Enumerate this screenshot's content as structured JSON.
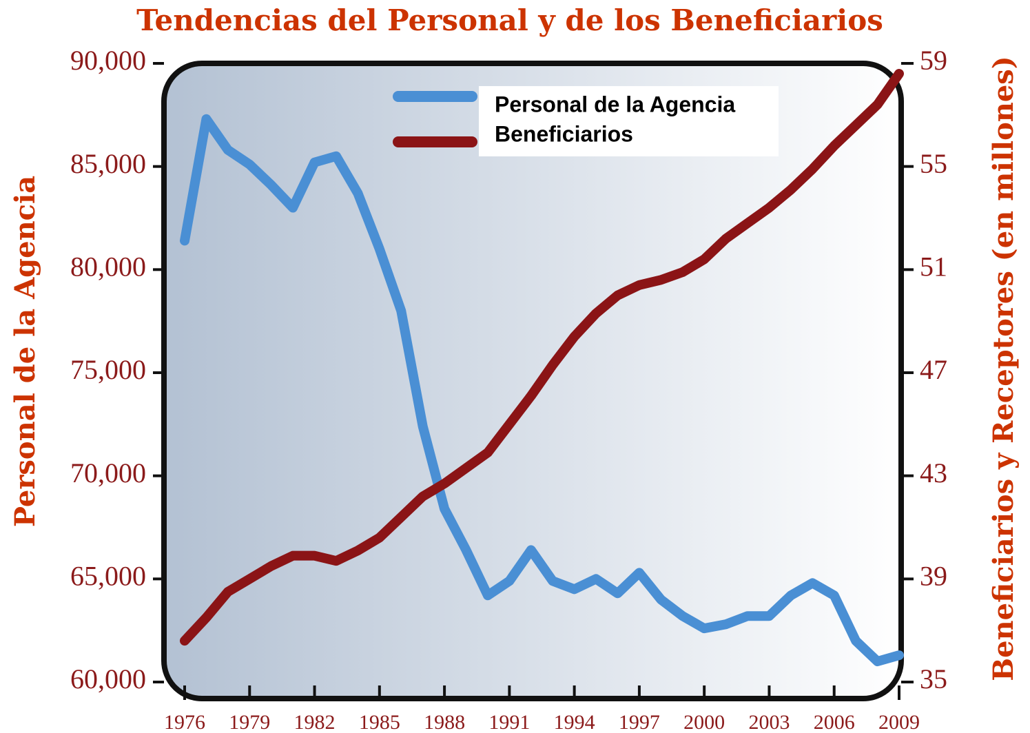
{
  "chart_data": {
    "type": "line",
    "title": "Tendencias del Personal y de los Beneficiarios",
    "ylabel": "Personal de la Agencia",
    "y2label": "Beneficiarios y Receptores (en millones)",
    "x": [
      1976,
      1977,
      1978,
      1979,
      1980,
      1981,
      1982,
      1983,
      1984,
      1985,
      1986,
      1987,
      1988,
      1989,
      1990,
      1991,
      1992,
      1993,
      1994,
      1995,
      1996,
      1997,
      1998,
      1999,
      2000,
      2001,
      2002,
      2003,
      2004,
      2005,
      2006,
      2007,
      2008,
      2009
    ],
    "xlim": [
      1976,
      2009
    ],
    "xticks": [
      1976,
      1979,
      1982,
      1985,
      1988,
      1991,
      1994,
      1997,
      2000,
      2003,
      2006,
      2009
    ],
    "ylim": [
      60000,
      90000
    ],
    "yticks": [
      {
        "value": 60000,
        "label": "60,000"
      },
      {
        "value": 65000,
        "label": "65,000"
      },
      {
        "value": 70000,
        "label": "70,000"
      },
      {
        "value": 75000,
        "label": "75,000"
      },
      {
        "value": 80000,
        "label": "80,000"
      },
      {
        "value": 85000,
        "label": "85,000"
      },
      {
        "value": 90000,
        "label": "90,000"
      }
    ],
    "y2lim": [
      35,
      59
    ],
    "y2ticks": [
      35,
      39,
      43,
      47,
      51,
      55,
      59
    ],
    "legend": "top",
    "series": [
      {
        "name": "Personal de la Agencia",
        "color": "#4a8fd4",
        "values": [
          81400,
          87300,
          85800,
          85100,
          84100,
          83000,
          85200,
          85500,
          83700,
          81000,
          78000,
          72400,
          68400,
          66400,
          64200,
          64900,
          66400,
          64900,
          64500,
          65000,
          64300,
          65300,
          64000,
          63200,
          62600,
          62800,
          63200,
          63200,
          64200,
          64800,
          64200,
          62000,
          61000,
          61300
        ]
      },
      {
        "name": "Beneficiarios",
        "color": "#8b1416",
        "axis": "y2",
        "values": [
          36.6,
          37.5,
          38.5,
          39.0,
          39.5,
          39.9,
          39.9,
          39.7,
          40.1,
          40.6,
          41.4,
          42.2,
          42.7,
          43.3,
          43.9,
          45.0,
          46.1,
          47.3,
          48.4,
          49.3,
          50.0,
          50.4,
          50.6,
          50.9,
          51.4,
          52.2,
          52.8,
          53.4,
          54.1,
          54.9,
          55.8,
          56.6,
          57.4,
          58.6
        ]
      }
    ]
  }
}
